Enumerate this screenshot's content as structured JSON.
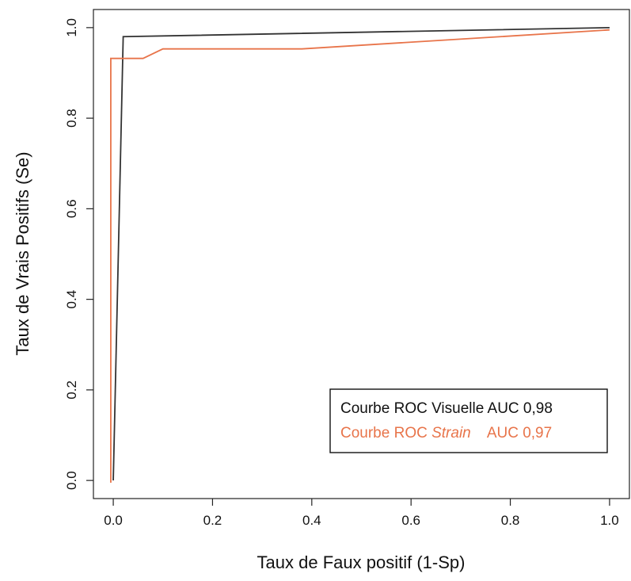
{
  "chart_data": {
    "type": "line",
    "title": "",
    "xlabel": "Taux de Faux positif (1-Sp)",
    "ylabel": "Taux de Vrais Positifs (Se)",
    "xlim": [
      -0.04,
      1.04
    ],
    "ylim": [
      -0.04,
      1.04
    ],
    "x_ticks": [
      0.0,
      0.2,
      0.4,
      0.6,
      0.8,
      1.0
    ],
    "x_tick_labels": [
      "0.0",
      "0.2",
      "0.4",
      "0.6",
      "0.8",
      "1.0"
    ],
    "y_ticks": [
      0.0,
      0.2,
      0.4,
      0.6,
      0.8,
      1.0
    ],
    "y_tick_labels": [
      "0.0",
      "0.2",
      "0.4",
      "0.6",
      "0.8",
      "1.0"
    ],
    "grid": false,
    "legend_position": "bottom-right",
    "series": [
      {
        "color": "#333333",
        "x": [
          0.0,
          0.02,
          1.0
        ],
        "y": [
          0.0,
          0.98,
          1.0
        ]
      },
      {
        "color": "#e8744a",
        "x": [
          -0.005,
          -0.005,
          0.06,
          0.1,
          0.38,
          1.0
        ],
        "y": [
          -0.005,
          0.932,
          0.932,
          0.953,
          0.953,
          0.995
        ]
      }
    ],
    "legend": [
      {
        "color": "#111111",
        "parts": [
          {
            "text": "Courbe ROC Visuelle AUC 0,98",
            "italic": false
          }
        ]
      },
      {
        "color": "#e8744a",
        "parts": [
          {
            "text": "Courbe ROC ",
            "italic": false
          },
          {
            "text": "Strain",
            "italic": true
          },
          {
            "text": "    AUC 0,97",
            "italic": false
          }
        ]
      }
    ]
  }
}
